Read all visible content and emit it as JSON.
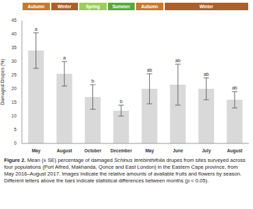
{
  "chart_data": {
    "type": "bar",
    "y_label": "Damaged Drupes (%)",
    "categories": [
      "May",
      "August",
      "October",
      "December",
      "May",
      "June",
      "July",
      "August"
    ],
    "values": [
      34,
      25.5,
      17,
      12,
      20,
      21.5,
      20,
      16
    ],
    "error": [
      6.5,
      4.5,
      4.5,
      2,
      5.5,
      7.5,
      4,
      3
    ],
    "significance_letters": [
      "a",
      "a",
      "b",
      "b",
      "ab",
      "ab",
      "ab",
      "ab"
    ],
    "color": "#d9d9d9",
    "ylim": [
      0,
      45
    ],
    "yticks": [
      0,
      5,
      10,
      15,
      20,
      25,
      30,
      35,
      40,
      45
    ],
    "grid": false,
    "seasons": [
      {
        "label": "Autumn",
        "color": "#c77a2e",
        "from": 0,
        "to": 0
      },
      {
        "label": "Winter",
        "color": "#a9602c",
        "from": 1,
        "to": 1
      },
      {
        "label": "Spring",
        "color": "#9ccc5c",
        "from": 2,
        "to": 2
      },
      {
        "label": "Summer",
        "color": "#5aa83c",
        "from": 3,
        "to": 3
      },
      {
        "label": "Autumn",
        "color": "#c77a2e",
        "from": 4,
        "to": 4
      },
      {
        "label": "Winter",
        "color": "#a9602c",
        "from": 5,
        "to": 7
      }
    ],
    "caption_label": "Figure 2.",
    "caption": "Mean (± SE) percentage of damaged Schinus terebinthifolia drupes from sites surveyed across four populations (Port Alfred, Makhanda, Qonce and East London) in the Eastern Cape province, from May 2016–August 2017. Images indicate the relative amounts of available fruits and flowers by season. Different letters above the bars indicate statistical differences between months (p < 0.05).",
    "caption_italic": "Schinus terebinthifolia"
  }
}
